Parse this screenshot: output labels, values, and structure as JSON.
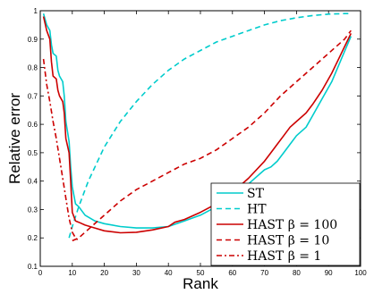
{
  "chart_data": {
    "type": "line",
    "xlabel": "Rank",
    "ylabel": "Relative error",
    "xlim": [
      0,
      100
    ],
    "ylim": [
      0.1,
      1
    ],
    "xticks": [
      "0",
      "10",
      "20",
      "30",
      "40",
      "50",
      "60",
      "70",
      "80",
      "90",
      "100"
    ],
    "yticks": [
      "0.1",
      "0.2",
      "0.3",
      "0.4",
      "0.5",
      "0.6",
      "0.7",
      "0.8",
      "0.9",
      "1"
    ],
    "grid": false,
    "legend_position": "bottom-right",
    "series": [
      {
        "name": "ST",
        "color": "#00cccc",
        "dash": "solid",
        "x": [
          1,
          2,
          3,
          3.5,
          4,
          5,
          5.5,
          6,
          7,
          7.5,
          8,
          9,
          9.5,
          10,
          11,
          12,
          14,
          17,
          20,
          25,
          30,
          35,
          40,
          45,
          50,
          55,
          60,
          65,
          70,
          72,
          74,
          76,
          78,
          80,
          83,
          85,
          88,
          91,
          94,
          97
        ],
        "y": [
          0.99,
          0.95,
          0.93,
          0.88,
          0.85,
          0.84,
          0.79,
          0.77,
          0.75,
          0.7,
          0.61,
          0.54,
          0.45,
          0.38,
          0.32,
          0.31,
          0.28,
          0.26,
          0.25,
          0.24,
          0.235,
          0.235,
          0.24,
          0.26,
          0.28,
          0.31,
          0.35,
          0.39,
          0.44,
          0.45,
          0.47,
          0.5,
          0.53,
          0.56,
          0.59,
          0.63,
          0.69,
          0.75,
          0.83,
          0.91
        ]
      },
      {
        "name": "HT",
        "color": "#00cccc",
        "dash": "6,4",
        "x": [
          9,
          10,
          12,
          15,
          20,
          25,
          30,
          35,
          40,
          45,
          50,
          55,
          60,
          65,
          70,
          75,
          80,
          85,
          90,
          95,
          97
        ],
        "y": [
          0.2,
          0.24,
          0.31,
          0.4,
          0.52,
          0.61,
          0.68,
          0.74,
          0.79,
          0.83,
          0.86,
          0.89,
          0.91,
          0.93,
          0.95,
          0.965,
          0.975,
          0.983,
          0.988,
          0.99,
          0.99
        ]
      },
      {
        "name": "HAST β = 100",
        "color": "#cc0000",
        "dash": "solid",
        "x": [
          1,
          2,
          3,
          3.5,
          4,
          5,
          5.5,
          6,
          7,
          7.5,
          8,
          9,
          9.5,
          10,
          11,
          12,
          14,
          17,
          20,
          25,
          30,
          35,
          40,
          42,
          45,
          50,
          55,
          60,
          65,
          70,
          72,
          74,
          76,
          78,
          80,
          83,
          85,
          88,
          91,
          94,
          97
        ],
        "y": [
          0.98,
          0.93,
          0.9,
          0.82,
          0.77,
          0.76,
          0.72,
          0.7,
          0.68,
          0.64,
          0.55,
          0.5,
          0.4,
          0.29,
          0.26,
          0.255,
          0.245,
          0.235,
          0.225,
          0.218,
          0.22,
          0.228,
          0.24,
          0.255,
          0.265,
          0.29,
          0.32,
          0.36,
          0.41,
          0.47,
          0.5,
          0.53,
          0.56,
          0.59,
          0.61,
          0.64,
          0.67,
          0.72,
          0.78,
          0.85,
          0.92
        ]
      },
      {
        "name": "HAST β = 10",
        "color": "#cc0000",
        "dash": "6,4",
        "x": [
          10,
          12,
          15,
          20,
          25,
          30,
          35,
          40,
          45,
          50,
          55,
          60,
          65,
          70,
          75,
          80,
          85,
          90,
          95,
          97
        ],
        "y": [
          0.19,
          0.2,
          0.23,
          0.28,
          0.33,
          0.37,
          0.4,
          0.43,
          0.46,
          0.48,
          0.51,
          0.55,
          0.59,
          0.64,
          0.7,
          0.75,
          0.8,
          0.85,
          0.9,
          0.93
        ]
      },
      {
        "name": "HAST β = 1",
        "color": "#cc0000",
        "dash": "6,3,2,3",
        "x": [
          1,
          2,
          3,
          4,
          5,
          6,
          7,
          8,
          9,
          10,
          11,
          12
        ],
        "y": [
          0.83,
          0.74,
          0.68,
          0.61,
          0.55,
          0.48,
          0.41,
          0.34,
          0.27,
          0.22,
          0.2,
          0.19
        ]
      }
    ]
  }
}
